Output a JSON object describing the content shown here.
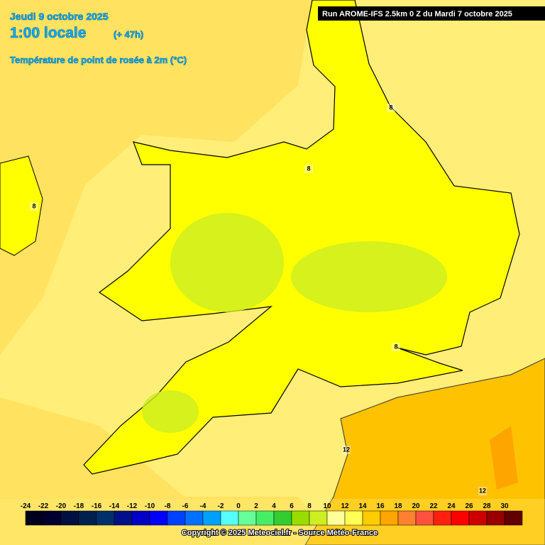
{
  "header": {
    "date": "Jeudi 9 octobre 2025",
    "time": "1:00 locale",
    "lead": "(+ 47h)",
    "parameter": "Température de point de rosée à 2m (°C)",
    "run": "Run AROME-IFS 2.5km 0 Z du Mardi 7 octobre 2025"
  },
  "map": {
    "contour_labels": [
      "8",
      "8",
      "8",
      "8",
      "12",
      "12"
    ]
  },
  "legend": {
    "ticks": [
      -24,
      -22,
      -20,
      -18,
      -16,
      -14,
      -12,
      -10,
      -8,
      -6,
      -4,
      -2,
      0,
      2,
      4,
      6,
      8,
      10,
      12,
      14,
      16,
      18,
      20,
      22,
      24,
      26,
      28,
      30
    ],
    "colors": [
      "#00001e",
      "#000030",
      "#001040",
      "#002050",
      "#00306a",
      "#00108a",
      "#0000c8",
      "#0000ff",
      "#0040ff",
      "#0070ff",
      "#00a0ff",
      "#55ffff",
      "#66ff99",
      "#44ee66",
      "#33cc33",
      "#99dd00",
      "#ccee22",
      "#ffff99",
      "#ffff55",
      "#ffcc00",
      "#ffa500",
      "#ff8030",
      "#ff5040",
      "#ff2010",
      "#ff0000",
      "#cc0000",
      "#990000",
      "#600000"
    ]
  },
  "footer": {
    "copyright": "Copyright © 2025 Meteociel.fr - Source Météo-France"
  }
}
